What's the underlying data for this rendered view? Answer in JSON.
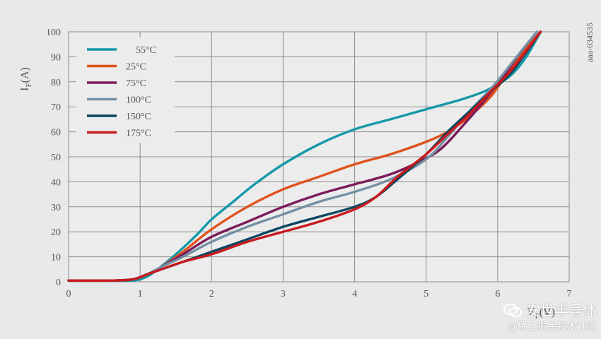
{
  "chart_data": {
    "type": "line",
    "title": "",
    "xlabel": "VF(V)",
    "ylabel": "IF(A)",
    "xlim": [
      0,
      7
    ],
    "ylim": [
      0,
      100
    ],
    "xticks": [
      "0",
      "1",
      "2",
      "3",
      "4",
      "5",
      "6",
      "7"
    ],
    "yticks": [
      "0",
      "10",
      "20",
      "30",
      "40",
      "50",
      "60",
      "70",
      "80",
      "90",
      "100"
    ],
    "grid": true,
    "legend_position": "top-left",
    "annotation": "aaa-034535",
    "series": [
      {
        "name": "    55°C",
        "color": "#1598a8",
        "x": [
          0,
          0.6,
          0.9,
          1.05,
          1.2,
          1.5,
          1.8,
          2.0,
          2.3,
          2.6,
          3.0,
          3.5,
          4.0,
          4.5,
          5.0,
          5.5,
          5.8,
          6.0,
          6.2,
          6.4,
          6.6
        ],
        "y": [
          0.5,
          0.5,
          0.5,
          1.5,
          4,
          11,
          19,
          25,
          32,
          39,
          47,
          55,
          61,
          65,
          69,
          73,
          76,
          79,
          83,
          90,
          100
        ]
      },
      {
        "name": "25°C",
        "color": "#e0521c",
        "x": [
          0,
          0.6,
          0.9,
          1.1,
          1.3,
          1.6,
          2.0,
          2.5,
          3.0,
          3.5,
          4.0,
          4.5,
          5.0,
          5.3,
          5.6,
          5.9,
          6.1,
          6.3,
          6.6
        ],
        "y": [
          0.5,
          0.5,
          1,
          3,
          6,
          12,
          21,
          30,
          37,
          42,
          47,
          51,
          56,
          60,
          66,
          74,
          82,
          90,
          100
        ]
      },
      {
        "name": "75°C",
        "color": "#7b1a5a",
        "x": [
          0,
          0.6,
          0.9,
          1.1,
          1.3,
          1.6,
          2.0,
          2.5,
          3.0,
          3.5,
          4.0,
          4.5,
          4.9,
          5.2,
          5.5,
          5.8,
          6.1,
          6.3,
          6.55
        ],
        "y": [
          0.5,
          0.5,
          1,
          3,
          6,
          11,
          18,
          24,
          30,
          35,
          39,
          43,
          48,
          53,
          62,
          72,
          83,
          91,
          100
        ]
      },
      {
        "name": "100°C",
        "color": "#7590a4",
        "x": [
          0,
          0.6,
          0.9,
          1.1,
          1.3,
          1.6,
          2.0,
          2.5,
          3.0,
          3.5,
          4.0,
          4.5,
          5.0,
          5.3,
          5.6,
          5.9,
          6.1,
          6.35,
          6.55
        ],
        "y": [
          0.5,
          0.5,
          1,
          3,
          6,
          10,
          16,
          22,
          27,
          32,
          36,
          41,
          49,
          58,
          68,
          77,
          84,
          93,
          100
        ]
      },
      {
        "name": "150°C",
        "color": "#0d4660",
        "x": [
          0,
          0.6,
          0.9,
          1.1,
          1.3,
          1.6,
          2.0,
          2.5,
          3.0,
          3.5,
          4.0,
          4.3,
          4.6,
          5.0,
          5.3,
          5.6,
          5.9,
          6.2,
          6.6
        ],
        "y": [
          0.5,
          0.5,
          1,
          3,
          5,
          8,
          12,
          17,
          22,
          26,
          30,
          34,
          41,
          51,
          60,
          68,
          76,
          84,
          100
        ]
      },
      {
        "name": "175°C",
        "color": "#c91a1e",
        "x": [
          0,
          0.6,
          0.9,
          1.1,
          1.3,
          1.6,
          2.0,
          2.5,
          3.0,
          3.5,
          4.0,
          4.3,
          4.6,
          5.0,
          5.3,
          5.6,
          5.9,
          6.2,
          6.6
        ],
        "y": [
          0.5,
          0.5,
          1,
          3,
          5,
          8,
          11,
          16,
          20,
          24,
          29,
          34,
          42,
          51,
          59,
          67,
          76,
          85,
          100
        ]
      }
    ]
  },
  "watermark": {
    "brand": "安世半导体",
    "sub": "@稀土掘金技术社区",
    "icon": "wechat-icon"
  }
}
